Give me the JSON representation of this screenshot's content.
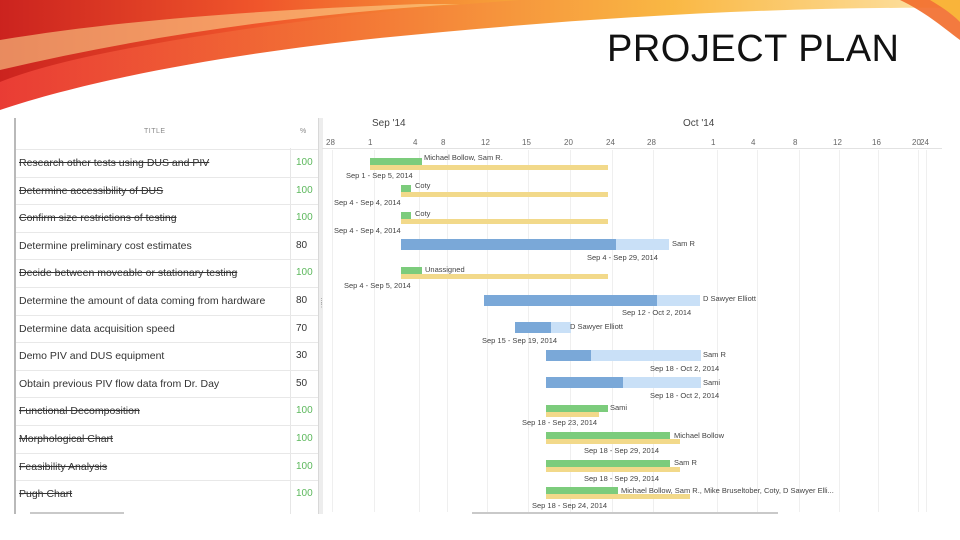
{
  "slide": {
    "title": "PROJECT PLAN"
  },
  "table": {
    "col_title": "TITLE",
    "col_pct": "%",
    "rows": [
      {
        "title": "Research other tests using DUS and PIV",
        "pct": "100",
        "done": true
      },
      {
        "title": "Determine accessibility of DUS",
        "pct": "100",
        "done": true
      },
      {
        "title": "Confirm size restrictions of testing",
        "pct": "100",
        "done": true
      },
      {
        "title": "Determine preliminary cost estimates",
        "pct": "80",
        "done": false
      },
      {
        "title": "Decide between moveable or stationary testing",
        "pct": "100",
        "done": true
      },
      {
        "title": "Determine the amount of data coming from hardware",
        "pct": "80",
        "done": false
      },
      {
        "title": "Determine data acquisition speed",
        "pct": "70",
        "done": false
      },
      {
        "title": "Demo PIV and DUS equipment",
        "pct": "30",
        "done": false
      },
      {
        "title": "Obtain previous PIV flow data from Dr. Day",
        "pct": "50",
        "done": false
      },
      {
        "title": "Functional Decomposition",
        "pct": "100",
        "done": true
      },
      {
        "title": "Morphological Chart",
        "pct": "100",
        "done": true
      },
      {
        "title": "Feasibility Analysis",
        "pct": "100",
        "done": true
      },
      {
        "title": "Pugh Chart",
        "pct": "100",
        "done": true
      }
    ]
  },
  "gantt": {
    "months": [
      {
        "label": "Sep '14"
      },
      {
        "label": "Oct '14"
      }
    ],
    "days": [
      "28",
      "1",
      "4",
      "8",
      "12",
      "15",
      "20",
      "24",
      "28",
      "1",
      "4",
      "8",
      "12",
      "16",
      "20",
      "24"
    ],
    "tasks": [
      {
        "assignee": "Michael Bollow, Sam R.",
        "range": "Sep 1 - Sep 5, 2014"
      },
      {
        "assignee": "Coty",
        "range": "Sep 4 - Sep 4, 2014"
      },
      {
        "assignee": "Coty",
        "range": "Sep 4 - Sep 4, 2014"
      },
      {
        "assignee": "Sam R",
        "range": "Sep 4 - Sep 29, 2014"
      },
      {
        "assignee": "Unassigned",
        "range": "Sep 4 - Sep 5, 2014"
      },
      {
        "assignee": "D Sawyer Elliott",
        "range": "Sep 12 - Oct 2, 2014"
      },
      {
        "assignee": "D Sawyer Elliott",
        "range": "Sep 15 - Sep 19, 2014"
      },
      {
        "assignee": "Sam R",
        "range": "Sep 18 - Oct 2, 2014"
      },
      {
        "assignee": "Sami",
        "range": "Sep 18 - Oct 2, 2014"
      },
      {
        "assignee": "Sami",
        "range": "Sep 18 - Sep 23, 2014"
      },
      {
        "assignee": "Michael Bollow",
        "range": "Sep 18 - Sep 29, 2014"
      },
      {
        "assignee": "Sam R",
        "range": "Sep 18 - Sep 29, 2014"
      },
      {
        "assignee": "Michael Bollow, Sam R., Mike Bruseltober, Coty, D Sawyer Elli...",
        "range": "Sep 18 - Sep 24, 2014"
      }
    ]
  },
  "colors": {
    "complete": "#7ccc7c",
    "baseline": "#f2d98a",
    "progress": "#7aa8d8",
    "remaining": "#c9e0f7"
  }
}
